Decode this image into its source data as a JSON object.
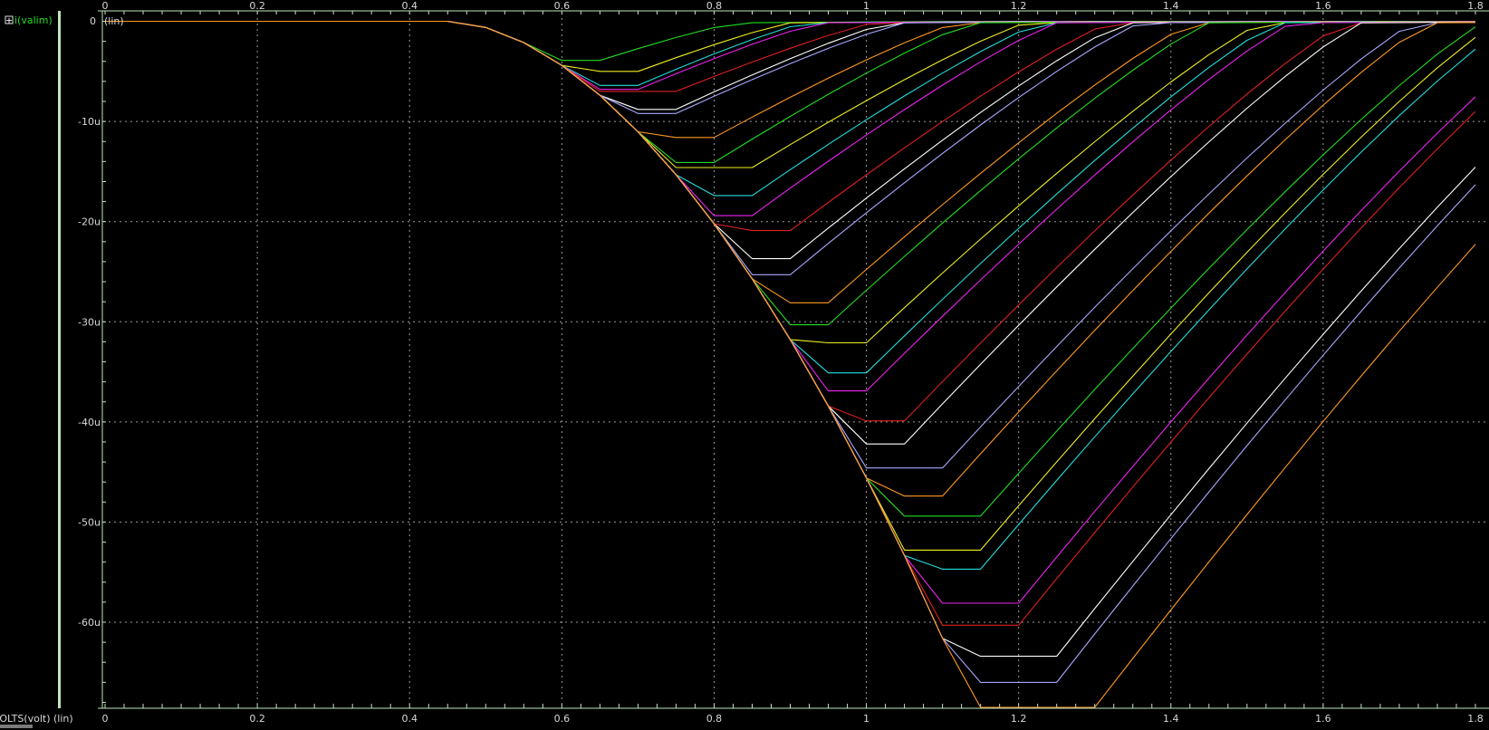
{
  "legend": {
    "expand_symbol": "+",
    "signal_name": "i(valim)",
    "signal_color": "#22dd22"
  },
  "y_axis": {
    "zero_label": "0",
    "scale_tag": "(lin)"
  },
  "x_axis": {
    "title": "VOLTS(volt) (lin)"
  },
  "colors": {
    "background": "#000000",
    "frame": "#bfe6bf",
    "grid": "#d0d0d0",
    "text": "#d8d8d8"
  },
  "chart_data": {
    "type": "line",
    "title": "",
    "xlabel": "VOLTS(volt)",
    "ylabel": "i(valim)",
    "xlim": [
      0,
      1.8
    ],
    "ylim": [
      -68.5,
      0.5
    ],
    "x_ticks": [
      0,
      0.2,
      0.4,
      0.6,
      0.8,
      1,
      1.2,
      1.4,
      1.6,
      1.8
    ],
    "x_tick_labels": [
      "0",
      "0.2",
      "0.4",
      "0.6",
      "0.8",
      "1",
      "1.2",
      "1.4",
      "1.6",
      "1.8"
    ],
    "y_ticks": [
      -10,
      -20,
      -30,
      -40,
      -50,
      -60
    ],
    "y_tick_labels": [
      "-10u",
      "-20u",
      "-30u",
      "-40u",
      "-50u",
      "-60u"
    ],
    "y_unit": "u",
    "grid": true,
    "x_step": 0.05,
    "palette": [
      "#22dd22",
      "#eeee22",
      "#22dddd",
      "#ee22ee",
      "#dd2020",
      "#ffffff",
      "#a8a8ff",
      "#ff9922"
    ],
    "series": [
      {
        "peak_x": 0.65,
        "peak_y": -3.9,
        "recovery": 0.18
      },
      {
        "peak_x": 0.7,
        "peak_y": -5.0,
        "recovery": 0.2
      },
      {
        "peak_x": 0.7,
        "peak_y": -6.4,
        "recovery": 0.22
      },
      {
        "peak_x": 0.7,
        "peak_y": -6.8,
        "recovery": 0.24
      },
      {
        "peak_x": 0.75,
        "peak_y": -7.0,
        "recovery": 0.26
      },
      {
        "peak_x": 0.75,
        "peak_y": -8.8,
        "recovery": 0.28
      },
      {
        "peak_x": 0.75,
        "peak_y": -9.2,
        "recovery": 0.3
      },
      {
        "peak_x": 0.8,
        "peak_y": -11.6,
        "recovery": 0.32
      },
      {
        "peak_x": 0.8,
        "peak_y": -14.1,
        "recovery": 0.34
      },
      {
        "peak_x": 0.85,
        "peak_y": -14.6,
        "recovery": 0.36
      },
      {
        "peak_x": 0.85,
        "peak_y": -17.4,
        "recovery": 0.38
      },
      {
        "peak_x": 0.85,
        "peak_y": -19.4,
        "recovery": 0.4
      },
      {
        "peak_x": 0.9,
        "peak_y": -20.9,
        "recovery": 0.42
      },
      {
        "peak_x": 0.9,
        "peak_y": -23.7,
        "recovery": 0.44
      },
      {
        "peak_x": 0.9,
        "peak_y": -25.3,
        "recovery": 0.46
      },
      {
        "peak_x": 0.95,
        "peak_y": -28.1,
        "recovery": 0.48
      },
      {
        "peak_x": 0.95,
        "peak_y": -30.3,
        "recovery": 0.5
      },
      {
        "peak_x": 1.0,
        "peak_y": -32.1,
        "recovery": 0.52
      },
      {
        "peak_x": 1.0,
        "peak_y": -35.1,
        "recovery": 0.54
      },
      {
        "peak_x": 1.0,
        "peak_y": -36.9,
        "recovery": 0.56
      },
      {
        "peak_x": 1.05,
        "peak_y": -39.9,
        "recovery": 0.58
      },
      {
        "peak_x": 1.05,
        "peak_y": -42.2,
        "recovery": 0.6
      },
      {
        "peak_x": 1.1,
        "peak_y": -44.6,
        "recovery": 0.62
      },
      {
        "peak_x": 1.1,
        "peak_y": -47.4,
        "recovery": 0.64
      },
      {
        "peak_x": 1.15,
        "peak_y": -49.4,
        "recovery": 0.66
      },
      {
        "peak_x": 1.15,
        "peak_y": -52.8,
        "recovery": 0.68
      },
      {
        "peak_x": 1.15,
        "peak_y": -54.7,
        "recovery": 0.7
      },
      {
        "peak_x": 1.2,
        "peak_y": -58.1,
        "recovery": 0.72
      },
      {
        "peak_x": 1.2,
        "peak_y": -60.3,
        "recovery": 0.74
      },
      {
        "peak_x": 1.25,
        "peak_y": -63.4,
        "recovery": 0.76
      },
      {
        "peak_x": 1.25,
        "peak_y": -66.0,
        "recovery": 0.78
      },
      {
        "peak_x": 1.3,
        "peak_y": -68.5,
        "recovery": 0.8
      }
    ]
  }
}
